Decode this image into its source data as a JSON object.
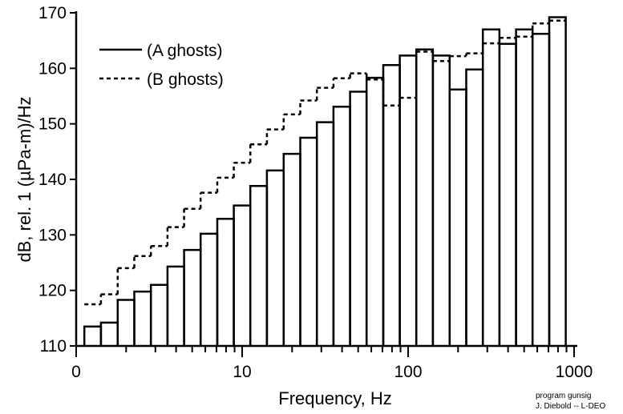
{
  "chart_data": {
    "type": "bar",
    "scale_x": "log",
    "xlabel": "Frequency, Hz",
    "ylabel": "dB, rel. 1 (µPa-m)/Hz",
    "ylim": [
      110,
      170
    ],
    "yticks": [
      110,
      120,
      130,
      140,
      150,
      160,
      170
    ],
    "xtick_labels": [
      "0",
      "10",
      "100",
      "1000"
    ],
    "x_edges": [
      1.12,
      1.41,
      1.78,
      2.24,
      2.82,
      3.55,
      4.47,
      5.62,
      7.08,
      8.91,
      11.2,
      14.1,
      17.8,
      22.4,
      28.2,
      35.5,
      44.7,
      56.2,
      70.8,
      89.1,
      112,
      141,
      178,
      224,
      282,
      355,
      447,
      562,
      708,
      891
    ],
    "series": [
      {
        "name": "(A ghosts)",
        "style": "solid",
        "values": [
          113.5,
          114.2,
          118.3,
          119.8,
          121.0,
          124.3,
          127.3,
          130.2,
          132.9,
          135.3,
          138.8,
          141.6,
          144.6,
          147.5,
          150.3,
          153.1,
          155.8,
          158.3,
          160.6,
          162.3,
          163.4,
          162.3,
          156.2,
          159.8,
          167.0,
          164.4,
          167.0,
          166.2,
          169.2
        ]
      },
      {
        "name": "(B ghosts)",
        "style": "dashed",
        "values": [
          117.5,
          119.3,
          124.0,
          126.2,
          128.0,
          131.4,
          134.7,
          137.6,
          140.3,
          143.0,
          146.3,
          149.0,
          151.7,
          154.2,
          156.5,
          158.2,
          159.1,
          158.0,
          153.3,
          154.7,
          163.0,
          161.3,
          162.2,
          162.7,
          164.5,
          165.5,
          165.7,
          168.1,
          168.6
        ]
      }
    ],
    "legend": "top-left",
    "grid": false
  },
  "credit": {
    "line1": "program gunsig",
    "line2": "J. Diebold -- L-DEO"
  }
}
